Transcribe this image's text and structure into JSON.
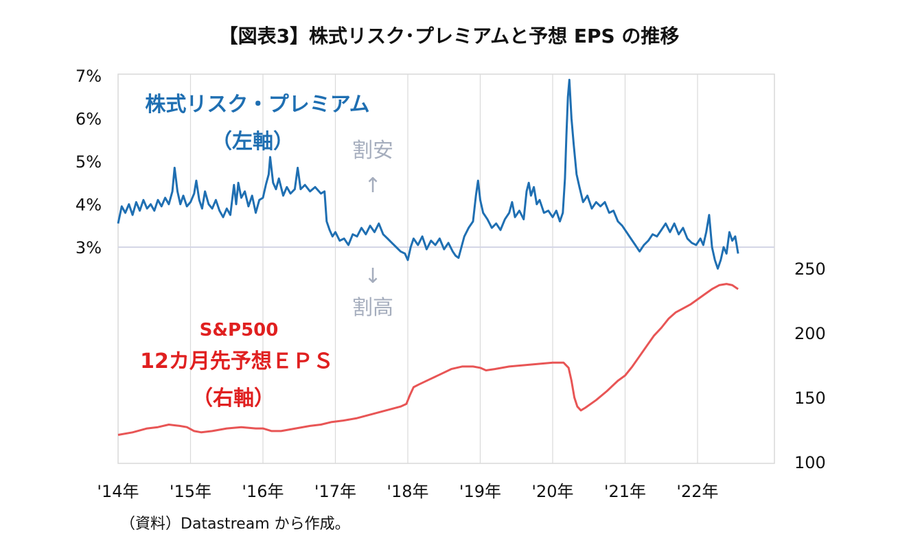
{
  "chart_data": {
    "type": "line",
    "title": "【図表3】株式リスク･プレミアムと予想 EPS の推移",
    "source_note": "（資料）Datastream から作成。",
    "x_ticks": [
      "'14年",
      "'15年",
      "'16年",
      "'17年",
      "'18年",
      "'19年",
      "'20年",
      "'21年",
      "'22年"
    ],
    "x_range": [
      2014.0,
      2023.0
    ],
    "y_left": {
      "ticks": [
        "7%",
        "6%",
        "5%",
        "4%",
        "3%"
      ],
      "range": [
        3,
        7
      ],
      "unit": "%"
    },
    "y_right": {
      "ticks": [
        "250",
        "200",
        "150",
        "100"
      ],
      "range": [
        100,
        250
      ]
    },
    "reference_line_left": 3,
    "series": [
      {
        "axis": "left",
        "color": "#1f6fb2",
        "points": [
          [
            2014.0,
            3.55
          ],
          [
            2014.05,
            3.95
          ],
          [
            2014.1,
            3.8
          ],
          [
            2014.15,
            4.0
          ],
          [
            2014.2,
            3.75
          ],
          [
            2014.25,
            4.05
          ],
          [
            2014.3,
            3.85
          ],
          [
            2014.35,
            4.1
          ],
          [
            2014.4,
            3.9
          ],
          [
            2014.45,
            4.0
          ],
          [
            2014.5,
            3.85
          ],
          [
            2014.55,
            4.1
          ],
          [
            2014.6,
            3.95
          ],
          [
            2014.65,
            4.15
          ],
          [
            2014.7,
            4.0
          ],
          [
            2014.75,
            4.3
          ],
          [
            2014.78,
            4.85
          ],
          [
            2014.82,
            4.3
          ],
          [
            2014.86,
            4.0
          ],
          [
            2014.9,
            4.2
          ],
          [
            2014.95,
            3.95
          ],
          [
            2015.0,
            4.05
          ],
          [
            2015.05,
            4.25
          ],
          [
            2015.08,
            4.55
          ],
          [
            2015.12,
            4.1
          ],
          [
            2015.16,
            3.9
          ],
          [
            2015.2,
            4.3
          ],
          [
            2015.25,
            4.0
          ],
          [
            2015.3,
            3.9
          ],
          [
            2015.35,
            4.1
          ],
          [
            2015.4,
            3.85
          ],
          [
            2015.45,
            3.7
          ],
          [
            2015.5,
            3.9
          ],
          [
            2015.55,
            3.75
          ],
          [
            2015.6,
            4.45
          ],
          [
            2015.63,
            4.0
          ],
          [
            2015.66,
            4.5
          ],
          [
            2015.7,
            4.15
          ],
          [
            2015.75,
            4.3
          ],
          [
            2015.8,
            3.95
          ],
          [
            2015.85,
            4.2
          ],
          [
            2015.9,
            3.8
          ],
          [
            2015.95,
            4.1
          ],
          [
            2016.0,
            4.15
          ],
          [
            2016.04,
            4.45
          ],
          [
            2016.08,
            4.7
          ],
          [
            2016.1,
            5.1
          ],
          [
            2016.14,
            4.5
          ],
          [
            2016.18,
            4.35
          ],
          [
            2016.22,
            4.6
          ],
          [
            2016.28,
            4.2
          ],
          [
            2016.33,
            4.4
          ],
          [
            2016.38,
            4.25
          ],
          [
            2016.44,
            4.35
          ],
          [
            2016.48,
            4.85
          ],
          [
            2016.52,
            4.35
          ],
          [
            2016.58,
            4.45
          ],
          [
            2016.65,
            4.3
          ],
          [
            2016.72,
            4.4
          ],
          [
            2016.8,
            4.25
          ],
          [
            2016.85,
            4.3
          ],
          [
            2016.88,
            3.6
          ],
          [
            2016.92,
            3.4
          ],
          [
            2016.96,
            3.25
          ],
          [
            2017.0,
            3.35
          ],
          [
            2017.06,
            3.15
          ],
          [
            2017.12,
            3.2
          ],
          [
            2017.18,
            3.05
          ],
          [
            2017.24,
            3.3
          ],
          [
            2017.3,
            3.25
          ],
          [
            2017.36,
            3.45
          ],
          [
            2017.42,
            3.3
          ],
          [
            2017.48,
            3.5
          ],
          [
            2017.54,
            3.35
          ],
          [
            2017.6,
            3.55
          ],
          [
            2017.66,
            3.3
          ],
          [
            2017.72,
            3.2
          ],
          [
            2017.78,
            3.1
          ],
          [
            2017.84,
            3.0
          ],
          [
            2017.9,
            2.9
          ],
          [
            2017.96,
            2.85
          ],
          [
            2018.0,
            2.7
          ],
          [
            2018.04,
            3.0
          ],
          [
            2018.08,
            3.2
          ],
          [
            2018.14,
            3.05
          ],
          [
            2018.2,
            3.25
          ],
          [
            2018.26,
            2.95
          ],
          [
            2018.32,
            3.15
          ],
          [
            2018.38,
            3.05
          ],
          [
            2018.44,
            3.2
          ],
          [
            2018.5,
            2.95
          ],
          [
            2018.56,
            3.1
          ],
          [
            2018.62,
            2.9
          ],
          [
            2018.66,
            2.8
          ],
          [
            2018.7,
            2.75
          ],
          [
            2018.74,
            3.0
          ],
          [
            2018.78,
            3.25
          ],
          [
            2018.84,
            3.45
          ],
          [
            2018.9,
            3.6
          ],
          [
            2018.94,
            4.2
          ],
          [
            2018.97,
            4.55
          ],
          [
            2019.0,
            4.1
          ],
          [
            2019.04,
            3.8
          ],
          [
            2019.1,
            3.65
          ],
          [
            2019.16,
            3.45
          ],
          [
            2019.22,
            3.55
          ],
          [
            2019.28,
            3.4
          ],
          [
            2019.34,
            3.65
          ],
          [
            2019.4,
            3.8
          ],
          [
            2019.44,
            4.05
          ],
          [
            2019.48,
            3.7
          ],
          [
            2019.54,
            3.85
          ],
          [
            2019.6,
            3.65
          ],
          [
            2019.64,
            4.3
          ],
          [
            2019.67,
            4.5
          ],
          [
            2019.7,
            4.2
          ],
          [
            2019.74,
            4.4
          ],
          [
            2019.78,
            4.0
          ],
          [
            2019.82,
            4.1
          ],
          [
            2019.88,
            3.8
          ],
          [
            2019.94,
            3.85
          ],
          [
            2020.0,
            3.7
          ],
          [
            2020.05,
            3.85
          ],
          [
            2020.1,
            3.6
          ],
          [
            2020.14,
            3.8
          ],
          [
            2020.17,
            4.6
          ],
          [
            2020.19,
            5.6
          ],
          [
            2020.21,
            6.5
          ],
          [
            2020.23,
            6.9
          ],
          [
            2020.26,
            6.0
          ],
          [
            2020.29,
            5.4
          ],
          [
            2020.33,
            4.7
          ],
          [
            2020.37,
            4.4
          ],
          [
            2020.42,
            4.05
          ],
          [
            2020.48,
            4.2
          ],
          [
            2020.54,
            3.9
          ],
          [
            2020.6,
            4.05
          ],
          [
            2020.66,
            3.95
          ],
          [
            2020.72,
            4.05
          ],
          [
            2020.78,
            3.8
          ],
          [
            2020.84,
            3.85
          ],
          [
            2020.9,
            3.6
          ],
          [
            2020.96,
            3.5
          ],
          [
            2021.02,
            3.35
          ],
          [
            2021.08,
            3.2
          ],
          [
            2021.14,
            3.05
          ],
          [
            2021.2,
            2.9
          ],
          [
            2021.26,
            3.05
          ],
          [
            2021.32,
            3.15
          ],
          [
            2021.38,
            3.3
          ],
          [
            2021.44,
            3.25
          ],
          [
            2021.5,
            3.4
          ],
          [
            2021.56,
            3.55
          ],
          [
            2021.62,
            3.35
          ],
          [
            2021.68,
            3.55
          ],
          [
            2021.74,
            3.3
          ],
          [
            2021.8,
            3.45
          ],
          [
            2021.86,
            3.2
          ],
          [
            2021.92,
            3.1
          ],
          [
            2021.98,
            3.05
          ],
          [
            2022.04,
            3.2
          ],
          [
            2022.08,
            3.05
          ],
          [
            2022.12,
            3.35
          ],
          [
            2022.16,
            3.75
          ],
          [
            2022.2,
            3.0
          ],
          [
            2022.24,
            2.7
          ],
          [
            2022.28,
            2.5
          ],
          [
            2022.32,
            2.7
          ],
          [
            2022.36,
            3.0
          ],
          [
            2022.4,
            2.85
          ],
          [
            2022.44,
            3.35
          ],
          [
            2022.48,
            3.15
          ],
          [
            2022.52,
            3.25
          ],
          [
            2022.56,
            2.85
          ]
        ]
      },
      {
        "axis": "right",
        "color": "#e85555",
        "points": [
          [
            2014.0,
            121
          ],
          [
            2014.2,
            123
          ],
          [
            2014.4,
            126
          ],
          [
            2014.55,
            127
          ],
          [
            2014.7,
            129
          ],
          [
            2014.85,
            128
          ],
          [
            2014.95,
            127
          ],
          [
            2015.05,
            124
          ],
          [
            2015.15,
            123
          ],
          [
            2015.3,
            124
          ],
          [
            2015.5,
            126
          ],
          [
            2015.7,
            127
          ],
          [
            2015.9,
            126
          ],
          [
            2016.0,
            126
          ],
          [
            2016.12,
            124
          ],
          [
            2016.25,
            124
          ],
          [
            2016.45,
            126
          ],
          [
            2016.65,
            128
          ],
          [
            2016.8,
            129
          ],
          [
            2016.95,
            131
          ],
          [
            2017.1,
            132
          ],
          [
            2017.3,
            134
          ],
          [
            2017.5,
            137
          ],
          [
            2017.7,
            140
          ],
          [
            2017.9,
            143
          ],
          [
            2017.98,
            145
          ],
          [
            2018.03,
            152
          ],
          [
            2018.08,
            158
          ],
          [
            2018.15,
            160
          ],
          [
            2018.3,
            164
          ],
          [
            2018.45,
            168
          ],
          [
            2018.6,
            172
          ],
          [
            2018.75,
            174
          ],
          [
            2018.9,
            174
          ],
          [
            2019.0,
            173
          ],
          [
            2019.08,
            171
          ],
          [
            2019.2,
            172
          ],
          [
            2019.4,
            174
          ],
          [
            2019.6,
            175
          ],
          [
            2019.8,
            176
          ],
          [
            2020.0,
            177
          ],
          [
            2020.15,
            177
          ],
          [
            2020.22,
            173
          ],
          [
            2020.26,
            163
          ],
          [
            2020.3,
            150
          ],
          [
            2020.34,
            143
          ],
          [
            2020.39,
            140
          ],
          [
            2020.45,
            142
          ],
          [
            2020.6,
            148
          ],
          [
            2020.75,
            155
          ],
          [
            2020.9,
            163
          ],
          [
            2021.0,
            167
          ],
          [
            2021.1,
            174
          ],
          [
            2021.2,
            182
          ],
          [
            2021.3,
            190
          ],
          [
            2021.4,
            198
          ],
          [
            2021.5,
            204
          ],
          [
            2021.6,
            211
          ],
          [
            2021.7,
            216
          ],
          [
            2021.8,
            219
          ],
          [
            2021.9,
            222
          ],
          [
            2022.0,
            226
          ],
          [
            2022.1,
            230
          ],
          [
            2022.2,
            234
          ],
          [
            2022.3,
            237
          ],
          [
            2022.4,
            238
          ],
          [
            2022.48,
            237
          ],
          [
            2022.56,
            234
          ]
        ]
      }
    ],
    "annotations": {
      "blue_label": "株式リスク・プレミアム",
      "blue_axis": "（左軸）",
      "cheap_label": "割安",
      "up_arrow": "↑",
      "down_arrow": "↓",
      "expensive_label": "割高",
      "red_label_1": "S&P500",
      "red_label_2": "12カ月先予想ＥＰＳ",
      "red_axis": "（右軸）"
    }
  }
}
